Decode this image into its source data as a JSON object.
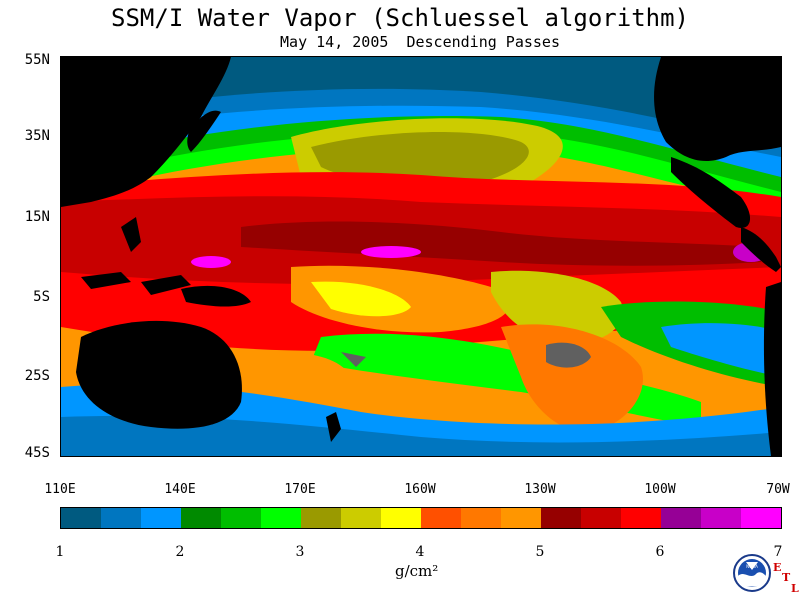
{
  "title": "SSM/I Water Vapor (Schluessel algorithm)",
  "subtitle": "May 14, 2005  Descending Passes",
  "lat_labels": [
    "55N",
    "35N",
    "15N",
    "5S",
    "25S",
    "45S"
  ],
  "lon_labels": [
    "110E",
    "140E",
    "170E",
    "160W",
    "130W",
    "100W",
    "70W"
  ],
  "colorbar": {
    "labels": [
      "1",
      "2",
      "3",
      "4",
      "5",
      "6",
      "7"
    ],
    "unit": "g/cm²",
    "colors": [
      "#005a80",
      "#0076c0",
      "#0096ff",
      "#008a00",
      "#00be00",
      "#00ff00",
      "#9a9a00",
      "#cccc00",
      "#ffff00",
      "#ff5000",
      "#ff7800",
      "#ff9600",
      "#960000",
      "#c80000",
      "#ff0000",
      "#960096",
      "#c800c8",
      "#ff00ff"
    ]
  },
  "logo": {
    "noaa": "NOAA",
    "etl": [
      "E",
      "T",
      "L"
    ]
  },
  "map": {
    "icons": [
      "water-vapor-field",
      "land-mask"
    ]
  }
}
